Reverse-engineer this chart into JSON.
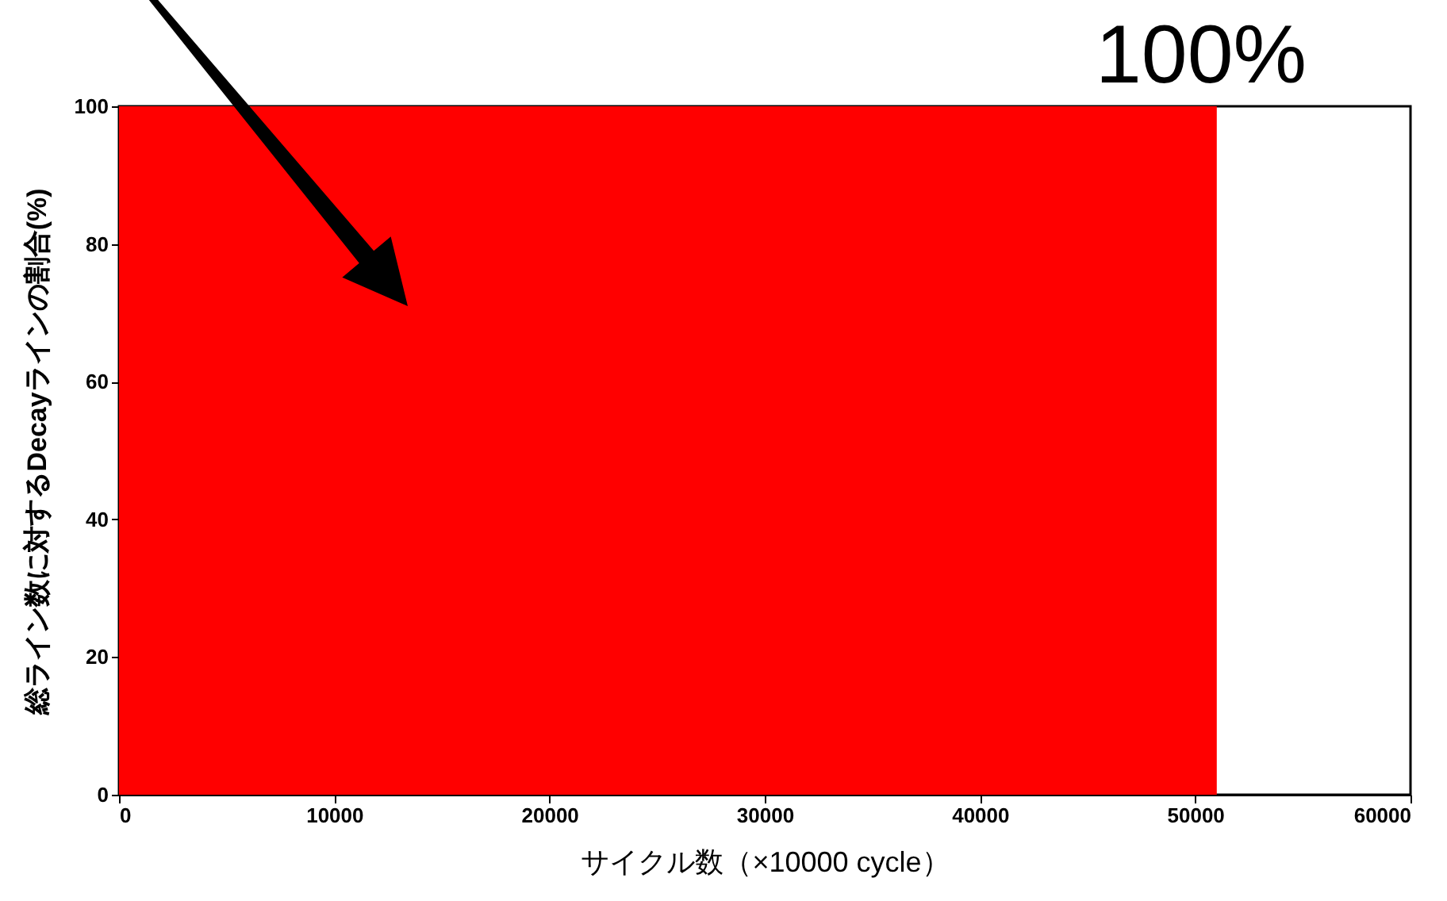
{
  "chart_data": {
    "type": "area",
    "xlabel": "サイクル数（×10000 cycle）",
    "ylabel": "総ライン数に対するDecayラインの割合(%)",
    "annotations": [
      "100%"
    ],
    "x": [
      0,
      51000
    ],
    "values": [
      100,
      100
    ],
    "color": "#ff0000",
    "xlim": [
      0,
      60000
    ],
    "xticks": [
      0,
      10000,
      20000,
      30000,
      40000,
      50000,
      60000
    ],
    "ylim": [
      0,
      100
    ],
    "yticks": [
      0,
      20,
      40,
      60,
      80,
      100
    ]
  }
}
